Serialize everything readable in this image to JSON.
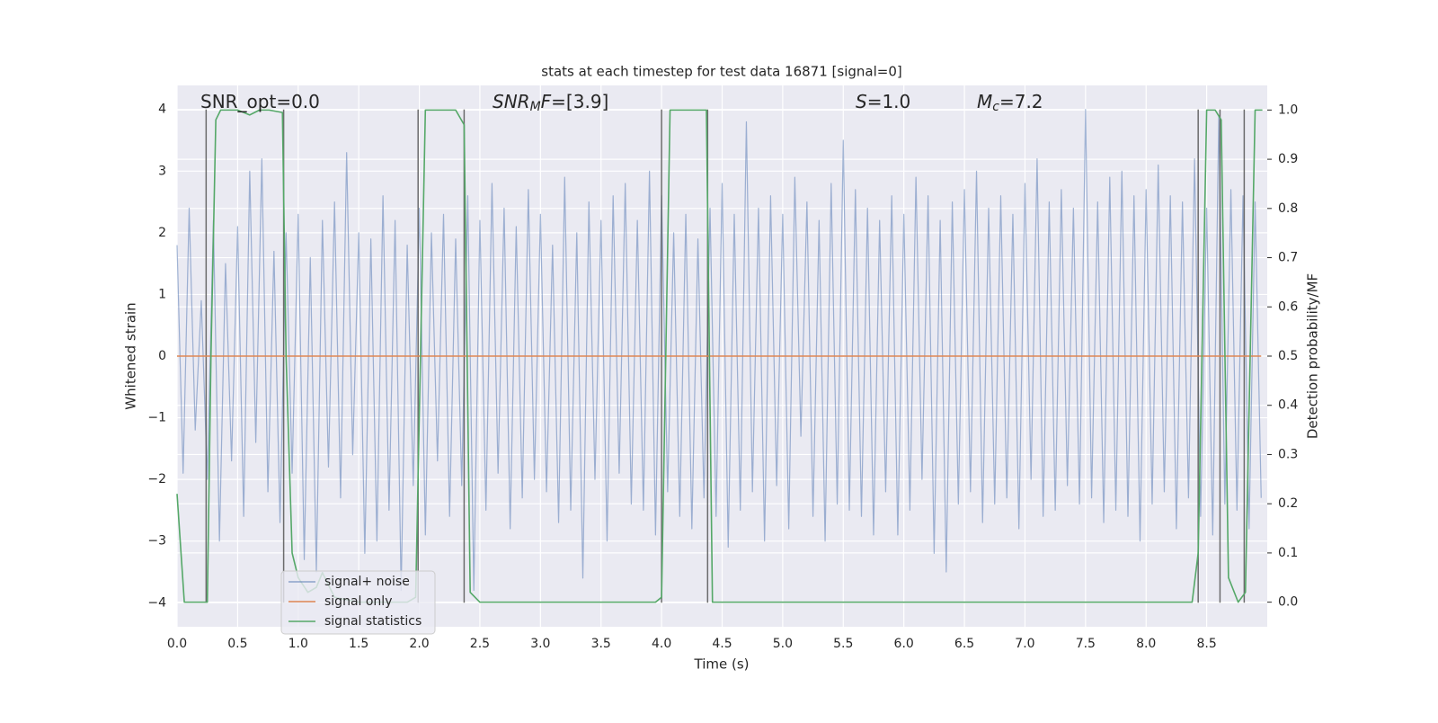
{
  "chart_data": {
    "type": "line",
    "title": "stats at each timestep for test data 16871 [signal=0]",
    "xlabel": "Time (s)",
    "ylabel": "Whitened strain",
    "y2label": "Detection probability/MF",
    "annotations": [
      [
        {
          "text": "SNR_opt=0.0"
        }
      ],
      [
        {
          "text": "SNR",
          "italic": true
        },
        {
          "text": "M",
          "italic": true,
          "sub": true
        },
        {
          "text": "F",
          "italic": true
        },
        {
          "text": "=[3.9]"
        }
      ],
      [
        {
          "text": "S",
          "italic": true
        },
        {
          "text": "=1.0"
        }
      ],
      [
        {
          "text": "M",
          "italic": true
        },
        {
          "text": "c",
          "italic": true,
          "sub": true
        },
        {
          "text": "=7.2"
        }
      ]
    ],
    "xlim": [
      0,
      9.0
    ],
    "ylim": [
      -4.39,
      4.39
    ],
    "y2lim": [
      -0.05,
      1.05
    ],
    "xticks": [
      {
        "value": 0,
        "label": "0.0"
      },
      0.5,
      {
        "value": 1,
        "label": "1.0"
      },
      1.5,
      {
        "value": 2,
        "label": "2.0"
      },
      2.5,
      {
        "value": 3,
        "label": "3.0"
      },
      3.5,
      {
        "value": 4,
        "label": "4.0"
      },
      4.5,
      {
        "value": 5,
        "label": "5.0"
      },
      5.5,
      {
        "value": 6,
        "label": "6.0"
      },
      6.5,
      {
        "value": 7,
        "label": "7.0"
      },
      7.5,
      {
        "value": 8,
        "label": "8.0"
      },
      8.5
    ],
    "yticks": [
      {
        "value": -4,
        "label": "−4"
      },
      {
        "value": -3,
        "label": "−3"
      },
      {
        "value": -2,
        "label": "−2"
      },
      {
        "value": -1,
        "label": "−1"
      },
      0,
      1,
      2,
      3,
      4
    ],
    "y2ticks": [
      {
        "value": 0,
        "label": "0.0"
      },
      0.1,
      0.2,
      0.3,
      0.4,
      0.5,
      0.6,
      0.7,
      0.8,
      0.9,
      {
        "value": 1,
        "label": "1.0"
      }
    ],
    "grid": true,
    "legend": "lower left",
    "series": [
      {
        "name": "signal+ noise",
        "color": "#4c72b0",
        "x": [
          0,
          0.05,
          0.1,
          0.15,
          0.2,
          0.25,
          0.3,
          0.35,
          0.4,
          0.45,
          0.5,
          0.55,
          0.6,
          0.65,
          0.7,
          0.75,
          0.8,
          0.85,
          0.9,
          0.95,
          1,
          1.05,
          1.1,
          1.15,
          1.2,
          1.25,
          1.3,
          1.35,
          1.4,
          1.45,
          1.5,
          1.55,
          1.6,
          1.65,
          1.7,
          1.75,
          1.8,
          1.85,
          1.9,
          1.95,
          2,
          2.05,
          2.1,
          2.15,
          2.2,
          2.25,
          2.3,
          2.35,
          2.4,
          2.45,
          2.5,
          2.55,
          2.6,
          2.65,
          2.7,
          2.75,
          2.8,
          2.85,
          2.9,
          2.95,
          3,
          3.05,
          3.1,
          3.15,
          3.2,
          3.25,
          3.3,
          3.35,
          3.4,
          3.45,
          3.5,
          3.55,
          3.6,
          3.65,
          3.7,
          3.75,
          3.8,
          3.85,
          3.9,
          3.95,
          4,
          4.05,
          4.1,
          4.15,
          4.2,
          4.25,
          4.3,
          4.35,
          4.4,
          4.45,
          4.5,
          4.55,
          4.6,
          4.65,
          4.7,
          4.75,
          4.8,
          4.85,
          4.9,
          4.95,
          5,
          5.05,
          5.1,
          5.15,
          5.2,
          5.25,
          5.3,
          5.35,
          5.4,
          5.45,
          5.5,
          5.55,
          5.6,
          5.65,
          5.7,
          5.75,
          5.8,
          5.85,
          5.9,
          5.95,
          6,
          6.05,
          6.1,
          6.15,
          6.2,
          6.25,
          6.3,
          6.35,
          6.4,
          6.45,
          6.5,
          6.55,
          6.6,
          6.65,
          6.7,
          6.75,
          6.8,
          6.85,
          6.9,
          6.95,
          7,
          7.05,
          7.1,
          7.15,
          7.2,
          7.25,
          7.3,
          7.35,
          7.4,
          7.45,
          7.5,
          7.55,
          7.6,
          7.65,
          7.7,
          7.75,
          7.8,
          7.85,
          7.9,
          7.95,
          8,
          8.05,
          8.1,
          8.15,
          8.2,
          8.25,
          8.3,
          8.35,
          8.4,
          8.45,
          8.5,
          8.55,
          8.6,
          8.65,
          8.7,
          8.75,
          8.8,
          8.85,
          8.9,
          8.95
        ],
        "values": [
          1.8,
          -1.9,
          2.4,
          -1.2,
          0.9,
          -2.0,
          2.2,
          -3.0,
          1.5,
          -1.7,
          2.1,
          -2.6,
          3.0,
          -1.4,
          3.2,
          -2.2,
          1.7,
          -2.7,
          2.0,
          -1.9,
          2.3,
          -3.3,
          1.6,
          -3.5,
          2.2,
          -1.8,
          2.5,
          -2.3,
          3.3,
          -1.6,
          2.0,
          -3.2,
          1.9,
          -3.0,
          2.6,
          -2.5,
          2.2,
          -3.8,
          1.8,
          -2.1,
          2.4,
          -2.9,
          2.0,
          -1.7,
          2.3,
          -2.6,
          1.9,
          -2.1,
          2.6,
          -3.8,
          2.2,
          -2.5,
          2.8,
          -1.9,
          2.4,
          -2.8,
          2.1,
          -2.3,
          2.7,
          -2.0,
          2.3,
          -2.2,
          1.8,
          -2.7,
          2.9,
          -2.5,
          2.0,
          -3.6,
          2.5,
          -2.0,
          2.2,
          -3.0,
          2.6,
          -1.9,
          2.8,
          -2.4,
          2.2,
          -2.5,
          3.0,
          -2.9,
          2.6,
          -2.2,
          2.0,
          -2.6,
          2.3,
          -2.8,
          1.9,
          -2.3,
          2.4,
          -2.6,
          2.8,
          -3.1,
          2.3,
          -2.5,
          3.8,
          -2.2,
          2.4,
          -3.0,
          2.6,
          -2.1,
          2.3,
          -2.8,
          2.9,
          -1.3,
          2.5,
          -2.6,
          2.2,
          -3.0,
          2.8,
          -2.4,
          3.5,
          -2.5,
          2.7,
          -2.6,
          2.4,
          -2.9,
          2.2,
          -2.2,
          2.6,
          -2.9,
          2.3,
          -2.5,
          2.9,
          -2.0,
          2.6,
          -3.2,
          2.2,
          -3.5,
          2.5,
          -2.4,
          2.7,
          -2.2,
          3.0,
          -2.7,
          2.4,
          -2.4,
          2.6,
          -2.3,
          2.3,
          -2.8,
          2.8,
          -2.0,
          3.2,
          -2.6,
          2.5,
          -2.5,
          2.7,
          -2.1,
          2.4,
          -2.4,
          4.0,
          -2.3,
          2.5,
          -2.7,
          2.9,
          -2.5,
          3.0,
          -2.6,
          2.6,
          -3.0,
          2.7,
          -2.4,
          3.1,
          -2.2,
          2.6,
          -2.8,
          2.5,
          -2.3,
          3.2,
          -2.6,
          2.4,
          -2.9,
          3.9,
          -2.4,
          2.7,
          -2.5,
          2.6,
          -2.8,
          2.5,
          -2.3
        ]
      },
      {
        "name": "signal only",
        "color": "#dd8452",
        "x": [
          0,
          8.95
        ],
        "values": [
          0,
          0
        ]
      },
      {
        "name": "signal statistics",
        "color": "#55a868",
        "axis": "y2",
        "x": [
          0,
          0.06,
          0.25,
          0.28,
          0.32,
          0.36,
          0.5,
          0.6,
          0.68,
          0.76,
          0.87,
          0.9,
          0.95,
          1.0,
          1.08,
          1.15,
          1.2,
          1.3,
          1.5,
          1.7,
          1.9,
          1.97,
          2.05,
          2.3,
          2.37,
          2.42,
          2.5,
          3.0,
          3.5,
          3.95,
          4.0,
          4.07,
          4.3,
          4.37,
          4.42,
          5.0,
          6.0,
          7.0,
          8.0,
          8.38,
          8.43,
          8.5,
          8.57,
          8.62,
          8.68,
          8.76,
          8.82,
          8.9,
          8.96
        ],
        "values": [
          0.22,
          0,
          0,
          0.5,
          0.98,
          1,
          1,
          0.99,
          1,
          1,
          0.995,
          0.5,
          0.1,
          0.05,
          0.02,
          0.03,
          0.06,
          0.01,
          0,
          0,
          0,
          0.01,
          1,
          1,
          0.97,
          0.02,
          0,
          0,
          0,
          0,
          0.01,
          1,
          1,
          1,
          0,
          0,
          0,
          0,
          0,
          0,
          0.1,
          1,
          1,
          0.98,
          0.05,
          0,
          0.02,
          1,
          1
        ]
      }
    ],
    "vlines": {
      "color": "#555555",
      "x": [
        0.24,
        0.88,
        1.99,
        2.37,
        4.0,
        4.38,
        8.43,
        8.61,
        8.81
      ]
    }
  }
}
